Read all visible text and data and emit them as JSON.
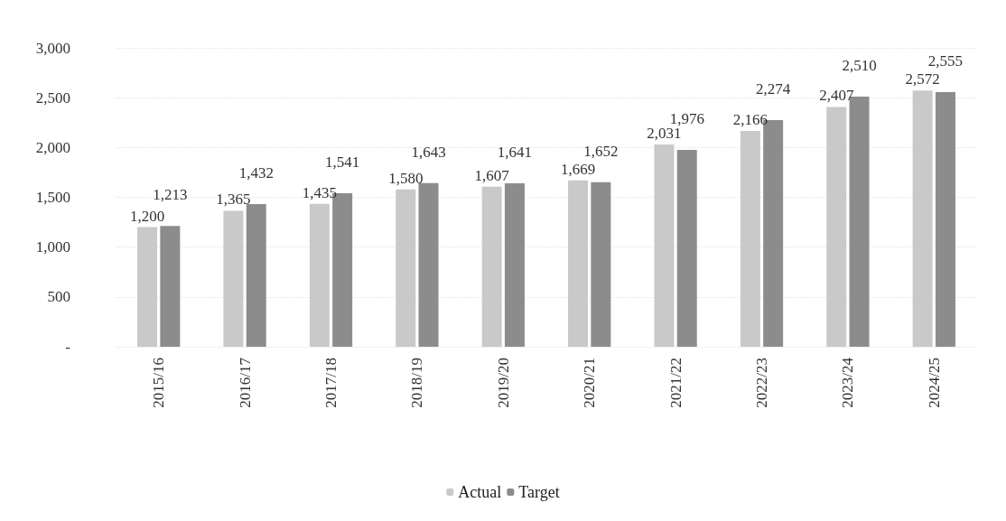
{
  "chart_data": {
    "type": "bar",
    "categories": [
      "2015/16",
      "2016/17",
      "2017/18",
      "2018/19",
      "2019/20",
      "2020/21",
      "2021/22",
      "2022/23",
      "2023/24",
      "2024/25"
    ],
    "series": [
      {
        "name": "Actual",
        "color": "#c9c9c9",
        "values": [
          1200,
          1365,
          1435,
          1580,
          1607,
          1669,
          2031,
          2166,
          2407,
          2572
        ],
        "value_labels": [
          "1,200",
          "1,365",
          "1,435",
          "1,580",
          "1,607",
          "1,669",
          "2,031",
          "2,166",
          "2,407",
          "2,572"
        ]
      },
      {
        "name": "Target",
        "color": "#8c8c8c",
        "values": [
          1213,
          1432,
          1541,
          1643,
          1641,
          1652,
          1976,
          2274,
          2510,
          2555
        ],
        "value_labels": [
          "1,213",
          "1,432",
          "1,541",
          "1,643",
          "1,641",
          "1,652",
          "1,976",
          "2,274",
          "2,510",
          "2,555"
        ]
      }
    ],
    "ylim": [
      0,
      3000
    ],
    "yticks": [
      {
        "value": 0,
        "label": "-"
      },
      500,
      {
        "value": 1000,
        "label": "1,000"
      },
      {
        "value": 1500,
        "label": "1,500"
      },
      {
        "value": 2000,
        "label": "2,000"
      },
      {
        "value": 2500,
        "label": "2,500"
      },
      {
        "value": 3000,
        "label": "3,000"
      }
    ],
    "grid": "y",
    "legend": "bottom"
  }
}
